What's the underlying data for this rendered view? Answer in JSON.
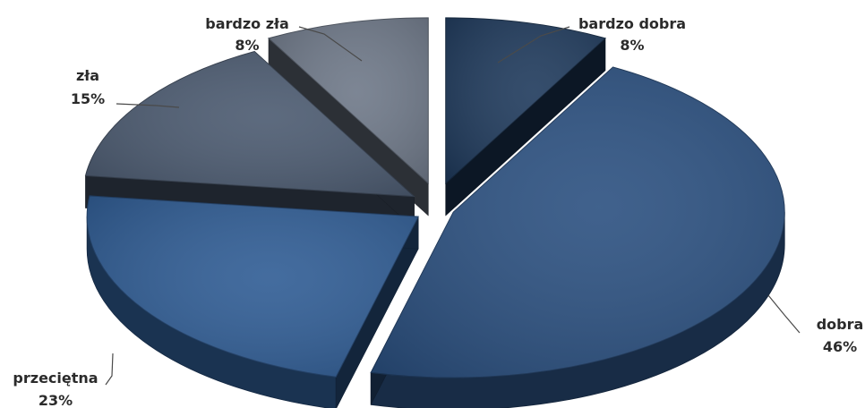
{
  "chart_data": {
    "type": "pie",
    "title": "",
    "categories": [
      "bardzo dobra",
      "dobra",
      "przeciętna",
      "zła",
      "bardzo zła"
    ],
    "values": [
      8,
      46,
      23,
      15,
      8
    ],
    "labels": [
      "8%",
      "46%",
      "23%",
      "15%",
      "8%"
    ],
    "colors": {
      "bardzo dobra": "#1f3a5c",
      "dobra": "#2b5080",
      "przeciętna": "#2f5c94",
      "zła": "#4b5a70",
      "bardzo zła": "#6e7888"
    },
    "exploded": true,
    "three_d": true,
    "legend": "none"
  }
}
